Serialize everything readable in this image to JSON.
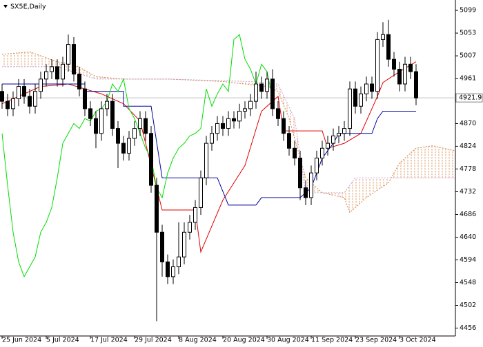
{
  "chart_data": {
    "type": "candlestick",
    "title": "SX5E,Daily",
    "xlim": [
      -0.375,
      82.125
    ],
    "xticks": [
      {
        "value": 0,
        "label": "25 Jun 2024"
      },
      {
        "value": 8,
        "label": "5 Jul 2024"
      },
      {
        "value": 16,
        "label": "17 Jul 2024"
      },
      {
        "value": 24,
        "label": "29 Jul 2024"
      },
      {
        "value": 32,
        "label": "8 Aug 2024"
      },
      {
        "value": 40,
        "label": "20 Aug 2024"
      },
      {
        "value": 48,
        "label": "30 Aug 2024"
      },
      {
        "value": 56,
        "label": "11 Sep 2024"
      },
      {
        "value": 64,
        "label": "23 Sep 2024"
      },
      {
        "value": 72,
        "label": "3 Oct 2024"
      }
    ],
    "ylim": [
      4440,
      5120
    ],
    "yticks": [
      4456,
      4502,
      4548,
      4594,
      4640,
      4686,
      4732,
      4778,
      4824,
      4870,
      4961,
      5007,
      5053,
      5099
    ],
    "candle_color": "#000000",
    "up_fill": "#ffffff",
    "open": [
      4935,
      4915,
      4900,
      4920,
      4945,
      4925,
      4905,
      4935,
      4960,
      4975,
      4985,
      4960,
      4990,
      5030,
      4970,
      4940,
      4900,
      4880,
      4850,
      4900,
      4915,
      4860,
      4830,
      4810,
      4840,
      4860,
      4880,
      4850,
      4745,
      4650,
      4590,
      4560,
      4580,
      4600,
      4650,
      4670,
      4700,
      4760,
      4830,
      4850,
      4870,
      4860,
      4880,
      4875,
      4895,
      4900,
      4915,
      4950,
      4935,
      4960,
      4900,
      4880,
      4850,
      4820,
      4800,
      4740,
      4720,
      4770,
      4800,
      4820,
      4830,
      4845,
      4850,
      4860,
      4940,
      4905,
      4930,
      4950,
      4935,
      5040,
      5050,
      5000,
      4980,
      4950,
      4990,
      4975
    ],
    "high": [
      4950,
      4930,
      4935,
      4960,
      4960,
      4940,
      4950,
      4975,
      4990,
      5000,
      5000,
      5005,
      5050,
      5045,
      4985,
      4955,
      4915,
      4895,
      4915,
      4930,
      4930,
      4875,
      4845,
      4855,
      4875,
      4895,
      4895,
      4865,
      4760,
      4665,
      4605,
      4595,
      4670,
      4670,
      4685,
      4715,
      4775,
      4845,
      4865,
      4885,
      4885,
      4895,
      4895,
      4910,
      4915,
      4930,
      4975,
      4965,
      4975,
      4980,
      4915,
      4895,
      4865,
      4835,
      4815,
      4755,
      4785,
      4815,
      4835,
      4845,
      4860,
      4865,
      4875,
      4955,
      4955,
      4945,
      4965,
      4965,
      5055,
      5075,
      5080,
      5015,
      4995,
      5005,
      5005,
      4990
    ],
    "low": [
      4900,
      4885,
      4885,
      4905,
      4910,
      4890,
      4890,
      4920,
      4945,
      4960,
      4945,
      4945,
      4975,
      4955,
      4925,
      4885,
      4865,
      4820,
      4835,
      4885,
      4845,
      4780,
      4795,
      4795,
      4825,
      4845,
      4835,
      4730,
      4470,
      4560,
      4545,
      4545,
      4565,
      4585,
      4635,
      4655,
      4685,
      4745,
      4815,
      4835,
      4845,
      4845,
      4860,
      4860,
      4880,
      4885,
      4900,
      4920,
      4920,
      4885,
      4865,
      4835,
      4805,
      4785,
      4715,
      4705,
      4705,
      4755,
      4785,
      4805,
      4815,
      4830,
      4835,
      4845,
      4890,
      4890,
      4915,
      4920,
      4920,
      5025,
      4985,
      4965,
      4935,
      4935,
      4960,
      4907
    ],
    "close": [
      4915,
      4900,
      4920,
      4945,
      4925,
      4905,
      4935,
      4960,
      4975,
      4985,
      4960,
      4990,
      5030,
      4970,
      4940,
      4900,
      4880,
      4850,
      4900,
      4915,
      4860,
      4830,
      4810,
      4840,
      4860,
      4880,
      4850,
      4745,
      4650,
      4590,
      4560,
      4580,
      4600,
      4650,
      4670,
      4700,
      4760,
      4830,
      4850,
      4870,
      4860,
      4880,
      4875,
      4895,
      4900,
      4915,
      4950,
      4935,
      4960,
      4900,
      4880,
      4850,
      4820,
      4800,
      4740,
      4720,
      4770,
      4800,
      4820,
      4830,
      4845,
      4850,
      4860,
      4940,
      4905,
      4930,
      4950,
      4935,
      5040,
      5050,
      5000,
      4980,
      4950,
      4990,
      4975,
      4921.9
    ],
    "price_line_color": "#c0c0c0",
    "lines": [
      {
        "color": "#e00000",
        "dash": false,
        "x": [
          0,
          7,
          12,
          15,
          18,
          22,
          25,
          29,
          35,
          36,
          40,
          44,
          47,
          50,
          51,
          58,
          59,
          62,
          65,
          68,
          69,
          72,
          75
        ],
        "values": [
          4910,
          4945,
          4950,
          4940,
          4930,
          4910,
          4875,
          4695,
          4695,
          4610,
          4715,
          4785,
          4895,
          4925,
          4855,
          4855,
          4820,
          4830,
          4850,
          4925,
          4953,
          4975,
          4995
        ]
      },
      {
        "color": "#0000a0",
        "dash": false,
        "x": [
          0,
          15,
          15,
          22,
          22,
          27,
          29,
          39,
          41,
          46,
          47,
          54,
          56,
          58,
          60,
          61,
          67,
          68,
          69,
          75
        ],
        "values": [
          4950,
          4950,
          4935,
          4935,
          4905,
          4905,
          4760,
          4760,
          4705,
          4705,
          4720,
          4720,
          4740,
          4800,
          4830,
          4850,
          4850,
          4880,
          4895,
          4895
        ]
      },
      {
        "color": "#00dd00",
        "dash": false,
        "x": [
          0,
          1,
          2,
          3,
          4,
          5,
          6,
          7,
          8,
          9,
          10,
          11,
          12,
          13,
          14,
          15,
          16,
          17,
          18,
          19,
          20,
          21,
          22,
          23,
          24,
          25,
          26,
          27,
          28,
          29,
          30,
          31,
          32,
          33,
          34,
          35,
          36,
          37,
          38,
          39,
          40,
          41,
          42,
          43,
          44,
          45,
          46,
          47,
          48,
          49
        ],
        "values": [
          4850,
          4745,
          4650,
          4590,
          4560,
          4580,
          4600,
          4650,
          4670,
          4700,
          4760,
          4830,
          4850,
          4870,
          4860,
          4880,
          4875,
          4895,
          4900,
          4915,
          4950,
          4935,
          4960,
          4900,
          4880,
          4850,
          4820,
          4800,
          4740,
          4720,
          4770,
          4800,
          4820,
          4830,
          4845,
          4850,
          4860,
          4940,
          4905,
          4930,
          4950,
          4935,
          5040,
          5050,
          5000,
          4980,
          4950,
          4990,
          4975,
          4921.9
        ]
      }
    ],
    "cloud_color": "#e0a070",
    "cloud": [
      {
        "color": "#d08040",
        "x": [
          0,
          5,
          10,
          13,
          17,
          22,
          30,
          40,
          44,
          48,
          50,
          52,
          55,
          58,
          62,
          63,
          66,
          70,
          72,
          75,
          78,
          82
        ],
        "values": [
          5010,
          5015,
          4995,
          4990,
          4965,
          4960,
          4960,
          4955,
          4950,
          4945,
          4935,
          4880,
          4760,
          4730,
          4720,
          4690,
          4720,
          4750,
          4790,
          4820,
          4825,
          4815
        ]
      },
      {
        "color": "#c8a0d8",
        "x": [
          0,
          10,
          17,
          30,
          45,
          50,
          53,
          55,
          62,
          64,
          72,
          82
        ],
        "values": [
          4985,
          4985,
          4960,
          4960,
          4955,
          4950,
          4880,
          4730,
          4730,
          4760,
          4760,
          4760
        ]
      }
    ]
  }
}
